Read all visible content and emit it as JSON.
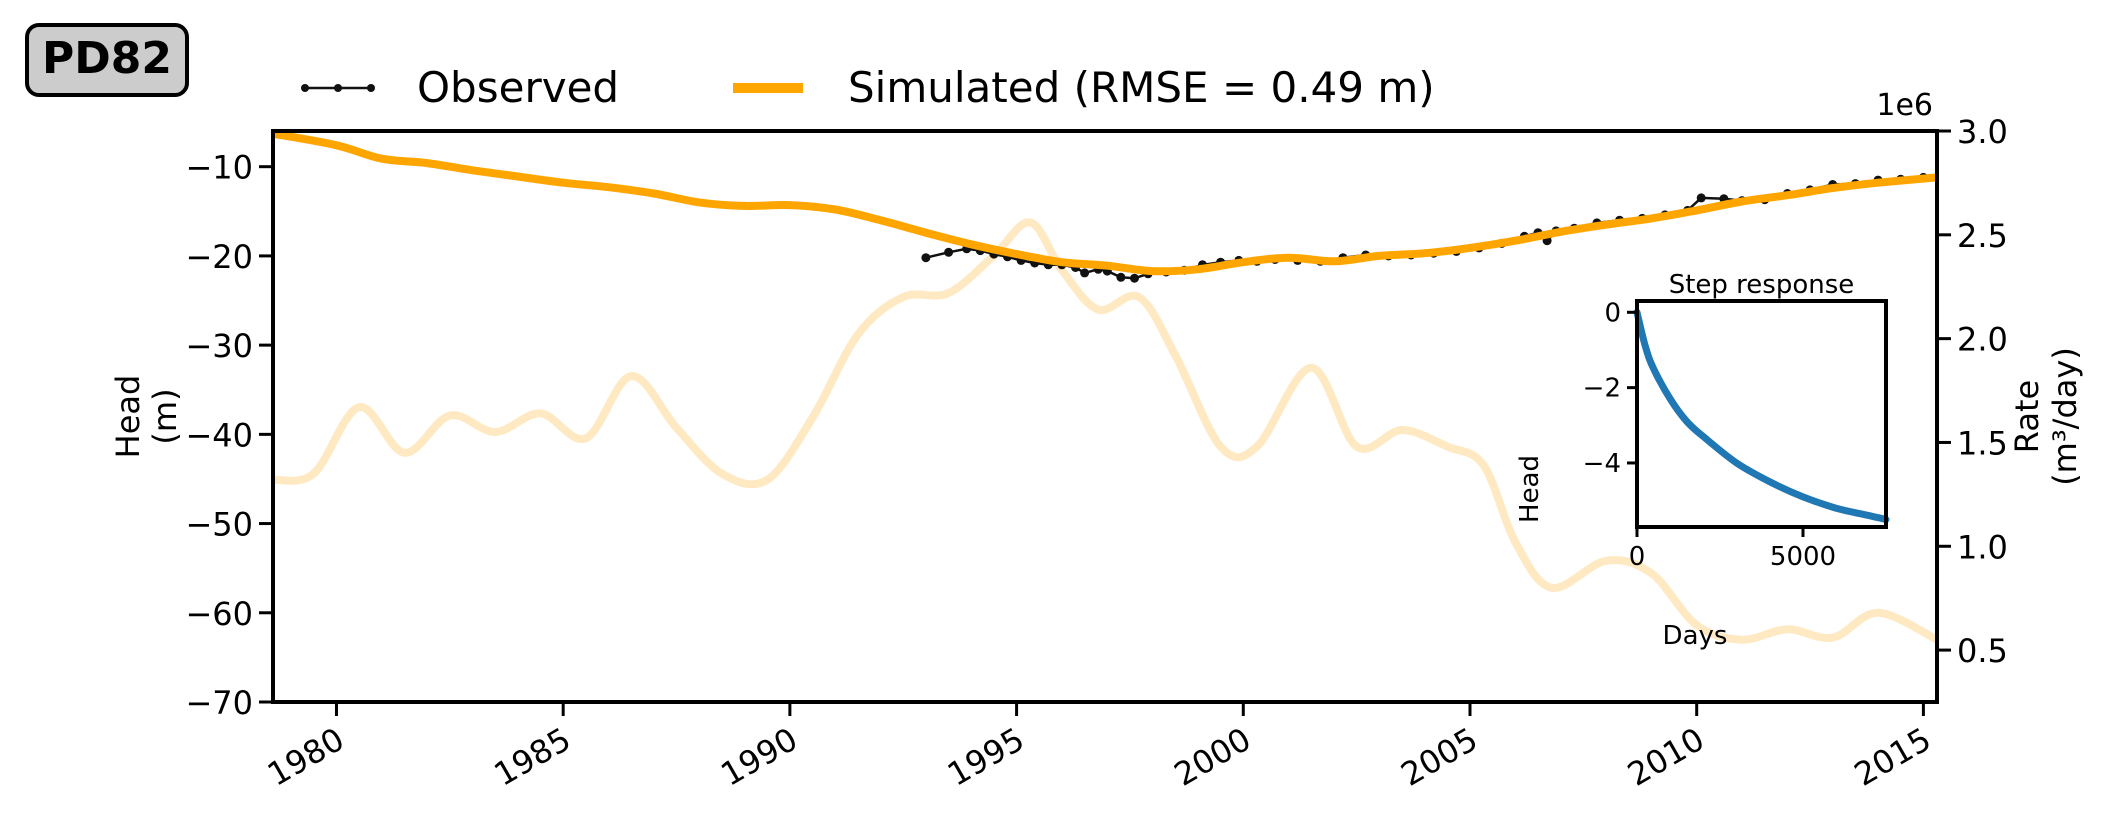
{
  "badge": {
    "label": "PD82"
  },
  "legend": {
    "observed": "Observed",
    "simulated": "Simulated (RMSE = 0.49 m)"
  },
  "colors": {
    "observed": "#111111",
    "simulated": "#FFA500",
    "rate": "#FFE9C2",
    "step": "#1F77B4",
    "badge_fill": "#CCCCCC"
  },
  "chart_data": [
    {
      "type": "line",
      "xlabel": "",
      "ylabel": "Head\n(m)",
      "y2label": "Rate\n(m³/day)",
      "y2_offset_label": "1e6",
      "xlim": [
        1978.6,
        2015.3
      ],
      "ylim": [
        -70,
        -6
      ],
      "y2lim": [
        0.25,
        3.0
      ],
      "x_ticks": [
        1980,
        1985,
        1990,
        1995,
        2000,
        2005,
        2010,
        2015
      ],
      "y_ticks": [
        -10,
        -20,
        -30,
        -40,
        -50,
        -60,
        -70
      ],
      "y2_ticks": [
        0.5,
        1.0,
        1.5,
        2.0,
        2.5,
        3.0
      ],
      "series": [
        {
          "name": "Observed",
          "axis": "left",
          "points": [
            [
              1993.0,
              -20.2
            ],
            [
              1993.5,
              -19.6
            ],
            [
              1993.9,
              -19.2
            ],
            [
              1994.2,
              -19.4
            ],
            [
              1994.5,
              -19.8
            ],
            [
              1994.8,
              -20.1
            ],
            [
              1995.1,
              -20.5
            ],
            [
              1995.4,
              -20.8
            ],
            [
              1995.7,
              -21.0
            ],
            [
              1996.0,
              -21.0
            ],
            [
              1996.3,
              -21.3
            ],
            [
              1996.5,
              -21.9
            ],
            [
              1996.8,
              -21.5
            ],
            [
              1997.0,
              -21.7
            ],
            [
              1997.3,
              -22.4
            ],
            [
              1997.6,
              -22.5
            ],
            [
              1997.9,
              -22.0
            ],
            [
              1998.3,
              -21.8
            ],
            [
              1998.7,
              -21.6
            ],
            [
              1999.1,
              -21.0
            ],
            [
              1999.5,
              -20.7
            ],
            [
              1999.9,
              -20.5
            ],
            [
              2000.3,
              -20.6
            ],
            [
              2000.7,
              -20.4
            ],
            [
              2001.2,
              -20.5
            ],
            [
              2001.7,
              -20.6
            ],
            [
              2002.2,
              -20.2
            ],
            [
              2002.7,
              -19.9
            ],
            [
              2003.2,
              -20.0
            ],
            [
              2003.7,
              -19.9
            ],
            [
              2004.2,
              -19.7
            ],
            [
              2004.7,
              -19.5
            ],
            [
              2005.2,
              -19.1
            ],
            [
              2005.7,
              -18.6
            ],
            [
              2006.2,
              -17.8
            ],
            [
              2006.5,
              -17.4
            ],
            [
              2006.7,
              -18.3
            ],
            [
              2006.9,
              -17.2
            ],
            [
              2007.3,
              -16.9
            ],
            [
              2007.8,
              -16.3
            ],
            [
              2008.3,
              -16.0
            ],
            [
              2008.8,
              -15.8
            ],
            [
              2009.3,
              -15.4
            ],
            [
              2009.8,
              -14.9
            ],
            [
              2010.1,
              -13.5
            ],
            [
              2010.6,
              -13.6
            ],
            [
              2011.0,
              -13.8
            ],
            [
              2011.5,
              -13.7
            ],
            [
              2012.0,
              -13.0
            ],
            [
              2012.5,
              -12.6
            ],
            [
              2013.0,
              -12.0
            ],
            [
              2013.5,
              -11.9
            ],
            [
              2014.0,
              -11.5
            ],
            [
              2014.5,
              -11.4
            ],
            [
              2015.0,
              -11.2
            ]
          ]
        },
        {
          "name": "Simulated (RMSE = 0.49 m)",
          "axis": "left",
          "points": [
            [
              1978.6,
              -6.3
            ],
            [
              1980.0,
              -7.6
            ],
            [
              1981.0,
              -9.1
            ],
            [
              1982.0,
              -9.6
            ],
            [
              1983.0,
              -10.4
            ],
            [
              1984.0,
              -11.1
            ],
            [
              1985.0,
              -11.8
            ],
            [
              1986.0,
              -12.3
            ],
            [
              1987.0,
              -13.0
            ],
            [
              1988.0,
              -14.0
            ],
            [
              1989.0,
              -14.4
            ],
            [
              1990.0,
              -14.3
            ],
            [
              1991.0,
              -14.8
            ],
            [
              1992.0,
              -16.0
            ],
            [
              1993.0,
              -17.4
            ],
            [
              1994.0,
              -18.7
            ],
            [
              1995.0,
              -19.8
            ],
            [
              1996.0,
              -20.7
            ],
            [
              1997.0,
              -21.1
            ],
            [
              1998.0,
              -21.7
            ],
            [
              1999.0,
              -21.5
            ],
            [
              2000.0,
              -20.7
            ],
            [
              2001.0,
              -20.2
            ],
            [
              2002.0,
              -20.6
            ],
            [
              2003.0,
              -20.0
            ],
            [
              2004.0,
              -19.7
            ],
            [
              2005.0,
              -19.1
            ],
            [
              2006.0,
              -18.3
            ],
            [
              2007.0,
              -17.3
            ],
            [
              2008.0,
              -16.5
            ],
            [
              2009.0,
              -15.8
            ],
            [
              2010.0,
              -14.9
            ],
            [
              2011.0,
              -13.9
            ],
            [
              2012.0,
              -13.2
            ],
            [
              2013.0,
              -12.4
            ],
            [
              2014.0,
              -11.8
            ],
            [
              2015.3,
              -11.2
            ]
          ]
        },
        {
          "name": "",
          "axis": "right",
          "points": [
            [
              1978.6,
              1.32
            ],
            [
              1979.5,
              1.35
            ],
            [
              1980.5,
              1.67
            ],
            [
              1981.5,
              1.45
            ],
            [
              1982.5,
              1.63
            ],
            [
              1983.5,
              1.55
            ],
            [
              1984.5,
              1.64
            ],
            [
              1985.5,
              1.52
            ],
            [
              1986.5,
              1.82
            ],
            [
              1987.5,
              1.57
            ],
            [
              1988.5,
              1.35
            ],
            [
              1989.5,
              1.32
            ],
            [
              1990.5,
              1.62
            ],
            [
              1991.5,
              2.02
            ],
            [
              1992.5,
              2.2
            ],
            [
              1993.5,
              2.22
            ],
            [
              1994.5,
              2.4
            ],
            [
              1995.3,
              2.56
            ],
            [
              1996.0,
              2.33
            ],
            [
              1996.8,
              2.14
            ],
            [
              1997.7,
              2.2
            ],
            [
              1998.5,
              1.92
            ],
            [
              1999.5,
              1.48
            ],
            [
              2000.3,
              1.48
            ],
            [
              2001.5,
              1.86
            ],
            [
              2002.5,
              1.48
            ],
            [
              2003.5,
              1.56
            ],
            [
              2004.5,
              1.48
            ],
            [
              2005.3,
              1.39
            ],
            [
              2006.0,
              1.02
            ],
            [
              2006.8,
              0.8
            ],
            [
              2008.0,
              0.93
            ],
            [
              2009.0,
              0.87
            ],
            [
              2010.0,
              0.62
            ],
            [
              2011.0,
              0.55
            ],
            [
              2012.0,
              0.6
            ],
            [
              2013.0,
              0.56
            ],
            [
              2014.0,
              0.68
            ],
            [
              2015.3,
              0.55
            ]
          ]
        }
      ]
    },
    {
      "type": "line",
      "title": "Step response",
      "xlabel": "Days",
      "ylabel": "Head",
      "xlim": [
        0,
        7500
      ],
      "ylim": [
        -5.7,
        0.3
      ],
      "x_ticks": [
        0,
        5000
      ],
      "y_ticks": [
        0,
        -2,
        -4
      ],
      "series": [
        {
          "name": "",
          "points": [
            [
              0,
              0
            ],
            [
              250,
              -0.9
            ],
            [
              500,
              -1.5
            ],
            [
              1000,
              -2.3
            ],
            [
              1500,
              -2.9
            ],
            [
              2000,
              -3.3
            ],
            [
              3000,
              -4.0
            ],
            [
              4000,
              -4.5
            ],
            [
              5000,
              -4.9
            ],
            [
              6000,
              -5.2
            ],
            [
              7000,
              -5.4
            ],
            [
              7500,
              -5.5
            ]
          ]
        }
      ]
    }
  ]
}
